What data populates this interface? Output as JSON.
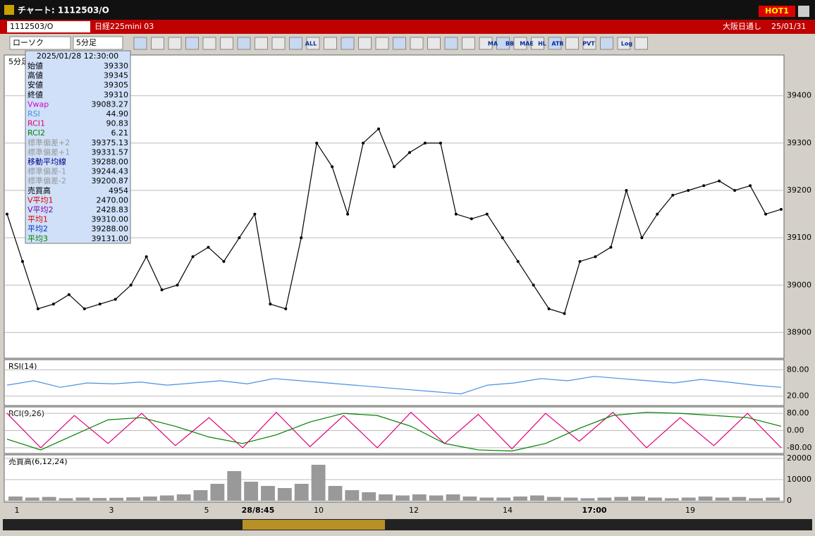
{
  "window": {
    "title": "チャート: 1112503/O",
    "hot": "HOT1"
  },
  "toolbar": {
    "symbol": "1112503/O",
    "name": "日経225mini 03",
    "session": "大阪日通し",
    "date": "25/01/31",
    "chart_type": "ローソク",
    "period": "5分足",
    "buttons": [
      "ALL",
      "MA",
      "BB",
      "MAE",
      "HL",
      "ATR",
      "PVT",
      "Log"
    ]
  },
  "info": {
    "datetime": "2025/01/28  12:30:00",
    "rows": [
      {
        "label": "始値",
        "value": "39330",
        "color": "#000"
      },
      {
        "label": "高値",
        "value": "39345",
        "color": "#000"
      },
      {
        "label": "安値",
        "value": "39305",
        "color": "#000"
      },
      {
        "label": "終値",
        "value": "39310",
        "color": "#000"
      },
      {
        "label": "Vwap",
        "value": "39083.27",
        "color": "#d000d0"
      },
      {
        "label": "RSI",
        "value": "44.90",
        "color": "#4a90e2"
      },
      {
        "label": "RCI1",
        "value": "90.83",
        "color": "#e0007a"
      },
      {
        "label": "RCI2",
        "value": "6.21",
        "color": "#008000"
      },
      {
        "label": "標準偏差+2",
        "value": "39375.13",
        "color": "#999"
      },
      {
        "label": "標準偏差+1",
        "value": "39331.57",
        "color": "#999"
      },
      {
        "label": "移動平均線",
        "value": "39288.00",
        "color": "#000080"
      },
      {
        "label": "標準偏差-1",
        "value": "39244.43",
        "color": "#999"
      },
      {
        "label": "標準偏差-2",
        "value": "39200.87",
        "color": "#999"
      },
      {
        "label": "売買高",
        "value": "4954",
        "color": "#000"
      },
      {
        "label": "V平均1",
        "value": "2470.00",
        "color": "#e00000"
      },
      {
        "label": "V平均2",
        "value": "2428.83",
        "color": "#8000a0"
      },
      {
        "label": "平均1",
        "value": "39310.00",
        "color": "#e00000"
      },
      {
        "label": "平均2",
        "value": "39288.00",
        "color": "#0030c0"
      },
      {
        "label": "平均3",
        "value": "39131.00",
        "color": "#008000"
      }
    ]
  },
  "price": {
    "label": "5分足",
    "ylim": [
      38850,
      39480
    ],
    "yticks": [
      38900,
      39000,
      39100,
      39200,
      39300,
      39400
    ],
    "closes": [
      39150,
      39050,
      38950,
      38960,
      38980,
      38950,
      38960,
      38970,
      39000,
      39060,
      38990,
      39000,
      39060,
      39080,
      39050,
      39100,
      39150,
      38960,
      38950,
      39100,
      39300,
      39250,
      39150,
      39300,
      39330,
      39250,
      39280,
      39300,
      39300,
      39150,
      39140,
      39150,
      39100,
      39050,
      39000,
      38950,
      38940,
      39050,
      39060,
      39080,
      39200,
      39100,
      39150,
      39190,
      39200,
      39210,
      39220,
      39200,
      39210,
      39150,
      39160
    ]
  },
  "rsi": {
    "label": "RSI(14)",
    "ylim": [
      0,
      100
    ],
    "yticks": [
      {
        "value": 80,
        "label": "80.00"
      },
      {
        "value": 20,
        "label": "20.00"
      }
    ],
    "values": [
      45,
      55,
      40,
      50,
      48,
      52,
      45,
      50,
      55,
      48,
      60,
      55,
      50,
      45,
      40,
      35,
      30,
      25,
      45,
      50,
      60,
      55,
      65,
      60,
      55,
      50,
      58,
      52,
      45,
      40
    ]
  },
  "rci": {
    "label": "RCI(9,26)",
    "ylim": [
      -100,
      100
    ],
    "yticks": [
      {
        "value": 80,
        "label": "80.00"
      },
      {
        "value": 0,
        "label": "0.00"
      },
      {
        "value": -80,
        "label": "-80.00"
      }
    ],
    "series": [
      {
        "color": "#e0007a",
        "values": [
          80,
          -80,
          70,
          -60,
          80,
          -70,
          60,
          -80,
          85,
          -75,
          70,
          -80,
          85,
          -60,
          75,
          -85,
          80,
          -50,
          85,
          -80,
          60,
          -70,
          80,
          -80
        ]
      },
      {
        "color": "#008000",
        "values": [
          -40,
          -90,
          -20,
          50,
          60,
          20,
          -30,
          -60,
          -20,
          40,
          80,
          70,
          20,
          -60,
          -90,
          -95,
          -60,
          10,
          70,
          85,
          80,
          70,
          60,
          20
        ]
      }
    ]
  },
  "volume": {
    "label": "売買高(6,12,24)",
    "ylim": [
      0,
      20000
    ],
    "yticks": [
      20000,
      10000,
      0
    ],
    "values": [
      2000,
      1500,
      1800,
      1200,
      1500,
      1300,
      1400,
      1600,
      2000,
      2500,
      3000,
      5000,
      8000,
      14000,
      9000,
      7000,
      6000,
      8000,
      17000,
      7000,
      5000,
      4000,
      3000,
      2500,
      3000,
      2500,
      3000,
      2000,
      1500,
      1500,
      2000,
      2500,
      1800,
      1500,
      1200,
      1500,
      1800,
      2000,
      1500,
      1200,
      1500,
      2000,
      1500,
      1800,
      1200,
      1500
    ]
  },
  "xaxis": {
    "labels": [
      "1",
      "3",
      "5",
      "28/8:45",
      "10",
      "12",
      "14",
      "17:00",
      "19"
    ]
  }
}
